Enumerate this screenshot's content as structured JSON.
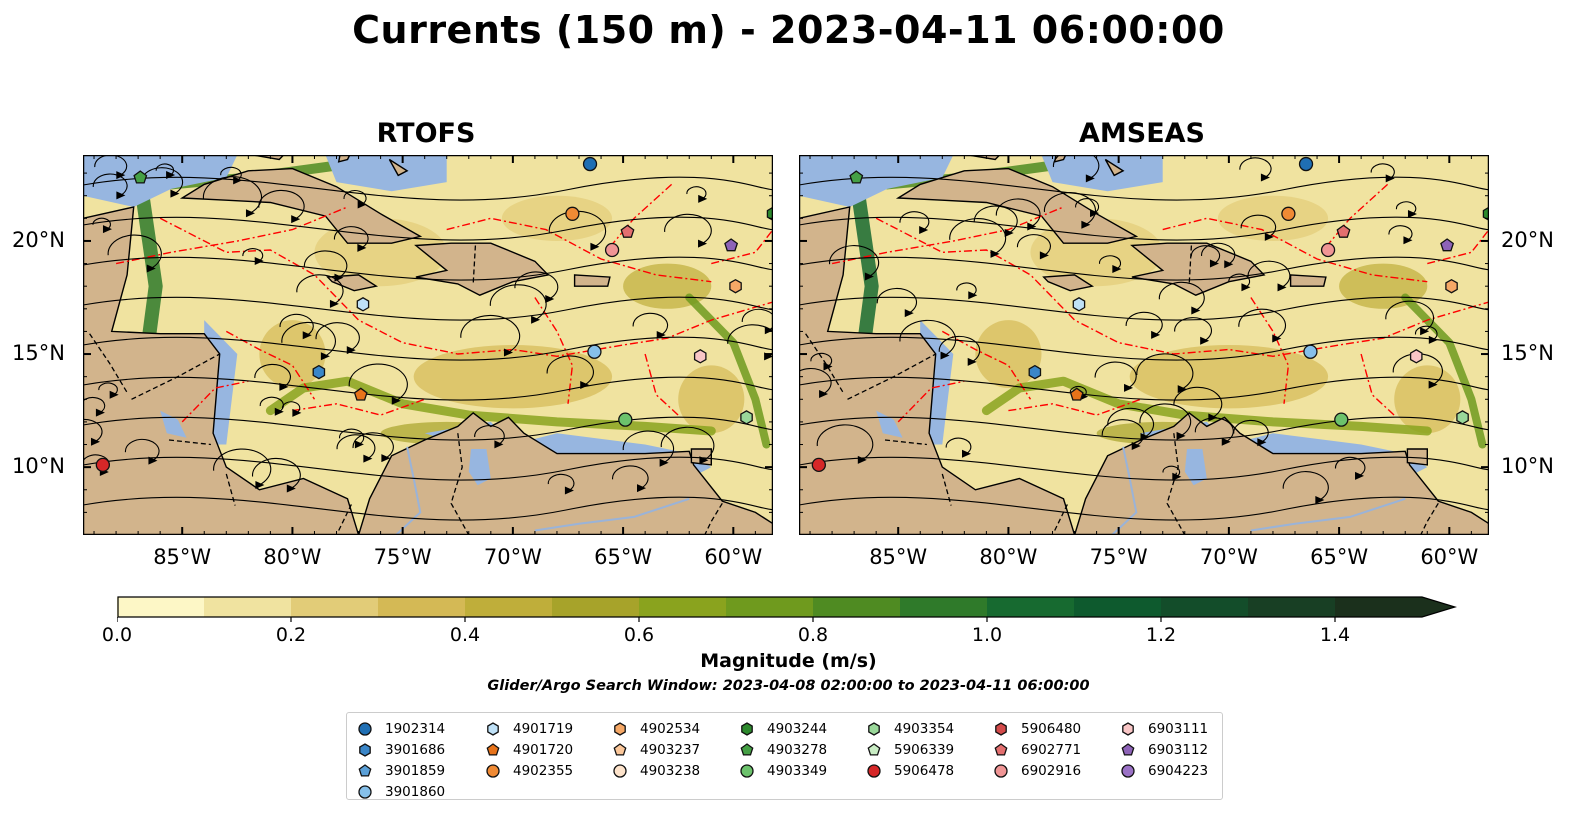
{
  "title": "Currents (150 m) - 2023-04-11 06:00:00",
  "panels": [
    {
      "title": "RTOFS",
      "x_ticks": [
        "85°W",
        "80°W",
        "75°W",
        "70°W",
        "65°W",
        "60°W"
      ],
      "y_ticks": [
        "20°N",
        "15°N",
        "10°N"
      ],
      "y_tick_side": "left"
    },
    {
      "title": "AMSEAS",
      "x_ticks": [
        "85°W",
        "80°W",
        "75°W",
        "70°W",
        "65°W",
        "60°W"
      ],
      "y_ticks": [
        "20°N",
        "15°N",
        "10°N"
      ],
      "y_tick_side": "right"
    }
  ],
  "colorbar": {
    "label": "Magnitude (m/s)",
    "ticks": [
      "0.0",
      "0.2",
      "0.4",
      "0.6",
      "0.8",
      "1.0",
      "1.2",
      "1.4"
    ],
    "range": [
      0,
      1.5
    ],
    "extend": "max",
    "colors": [
      "#fdf7c6",
      "#f0e3a0",
      "#e2cc78",
      "#d4b955",
      "#bfae3a",
      "#a7a32a",
      "#8aa31e",
      "#6f9a1e",
      "#4f8b22",
      "#2f7a2a",
      "#176a30",
      "#0e5a2e",
      "#134d2a",
      "#183f24",
      "#1b301c"
    ]
  },
  "search_window": "Glider/Argo Search Window: 2023-04-08 02:00:00 to 2023-04-11 06:00:00",
  "legend": [
    [
      {
        "id": "1902314",
        "marker": "circle",
        "color": "#1f6fb4"
      },
      {
        "id": "3901686",
        "marker": "hexagon",
        "color": "#3a86c8"
      },
      {
        "id": "3901859",
        "marker": "pentagon",
        "color": "#5aa0d8"
      },
      {
        "id": "3901860",
        "marker": "circle",
        "color": "#86c0ea"
      }
    ],
    [
      {
        "id": "4901719",
        "marker": "hexagon",
        "color": "#bfe1f7"
      },
      {
        "id": "4901720",
        "marker": "pentagon",
        "color": "#e8731a"
      },
      {
        "id": "4902355",
        "marker": "circle",
        "color": "#f08a34"
      }
    ],
    [
      {
        "id": "4902534",
        "marker": "hexagon",
        "color": "#f6a866"
      },
      {
        "id": "4903237",
        "marker": "pentagon",
        "color": "#fbc79a"
      },
      {
        "id": "4903238",
        "marker": "circle",
        "color": "#fde3cb"
      }
    ],
    [
      {
        "id": "4903244",
        "marker": "hexagon",
        "color": "#2d8a2d"
      },
      {
        "id": "4903278",
        "marker": "pentagon",
        "color": "#45a045"
      },
      {
        "id": "4903349",
        "marker": "circle",
        "color": "#6cc26c"
      }
    ],
    [
      {
        "id": "4903354",
        "marker": "hexagon",
        "color": "#9ad89a"
      },
      {
        "id": "5906339",
        "marker": "pentagon",
        "color": "#c9edc4"
      },
      {
        "id": "5906478",
        "marker": "circle",
        "color": "#d62728"
      }
    ],
    [
      {
        "id": "5906480",
        "marker": "hexagon",
        "color": "#d34a4a"
      },
      {
        "id": "6902771",
        "marker": "pentagon",
        "color": "#e36f6f"
      },
      {
        "id": "6902916",
        "marker": "circle",
        "color": "#f09595"
      }
    ],
    [
      {
        "id": "6903111",
        "marker": "hexagon",
        "color": "#f9c6c6"
      },
      {
        "id": "6903112",
        "marker": "pentagon",
        "color": "#8e63b8"
      },
      {
        "id": "6904223",
        "marker": "circle",
        "color": "#9b72c6"
      }
    ]
  ],
  "colors": {
    "land": "#d2b48c",
    "water_low": "#f1e6a6",
    "shallow": "#97b6e0",
    "eez": "#ff0000",
    "streamline": "#000000"
  }
}
